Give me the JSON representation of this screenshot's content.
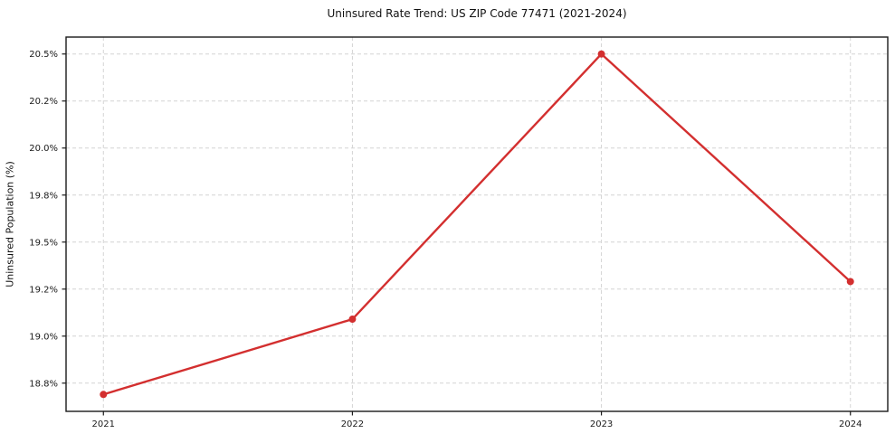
{
  "chart_data": {
    "type": "line",
    "title": "Uninsured Rate Trend: US ZIP Code 77471 (2021-2024)",
    "ylabel": "Uninsured Population (%)",
    "xlabel": "",
    "x": [
      2021,
      2022,
      2023,
      2024
    ],
    "series": [
      {
        "name": "Uninsured rate",
        "values": [
          18.69,
          19.09,
          20.5,
          19.29
        ]
      }
    ],
    "xticks": [
      {
        "v": 2021,
        "label": "2021"
      },
      {
        "v": 2022,
        "label": "2022"
      },
      {
        "v": 2023,
        "label": "2023"
      },
      {
        "v": 2024,
        "label": "2024"
      }
    ],
    "yticks": [
      {
        "v": 18.75,
        "label": "18.8%"
      },
      {
        "v": 19.0,
        "label": "19.0%"
      },
      {
        "v": 19.25,
        "label": "19.2%"
      },
      {
        "v": 19.5,
        "label": "19.5%"
      },
      {
        "v": 19.75,
        "label": "19.8%"
      },
      {
        "v": 20.0,
        "label": "20.0%"
      },
      {
        "v": 20.25,
        "label": "20.2%"
      },
      {
        "v": 20.5,
        "label": "20.5%"
      }
    ],
    "xlim": [
      2020.85,
      2024.15
    ],
    "ylim": [
      18.6,
      20.59
    ],
    "grid": true,
    "legend_position": "none",
    "colors": {
      "line": "#d32f2f",
      "marker": "#d32f2f",
      "grid": "#d4d4d4",
      "spine": "#1a1a1a",
      "background": "#ffffff"
    }
  }
}
